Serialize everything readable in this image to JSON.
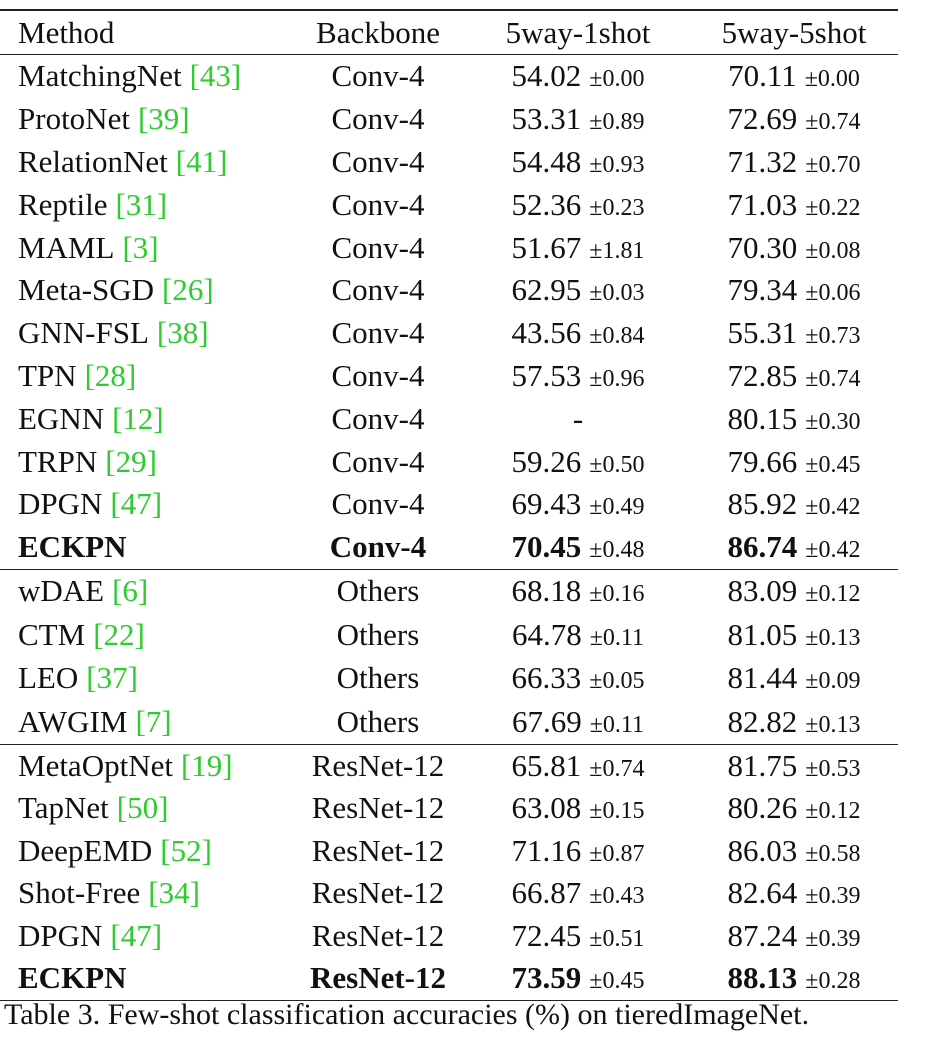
{
  "table": {
    "header": [
      "Method",
      "Backbone",
      "5way-1shot",
      "5way-5shot"
    ],
    "groups": [
      {
        "rows": [
          {
            "method": "MatchingNet",
            "ref": "[43]",
            "backbone": "Conv-4",
            "shot1": "54.02",
            "shot1_std": "±0.00",
            "shot5": "70.11",
            "shot5_std": "±0.00"
          },
          {
            "method": "ProtoNet",
            "ref": "[39]",
            "backbone": "Conv-4",
            "shot1": "53.31",
            "shot1_std": "±0.89",
            "shot5": "72.69",
            "shot5_std": "±0.74"
          },
          {
            "method": "RelationNet",
            "ref": "[41]",
            "backbone": "Conv-4",
            "shot1": "54.48",
            "shot1_std": "±0.93",
            "shot5": "71.32",
            "shot5_std": "±0.70"
          },
          {
            "method": "Reptile",
            "ref": "[31]",
            "backbone": "Conv-4",
            "shot1": "52.36",
            "shot1_std": "±0.23",
            "shot5": "71.03",
            "shot5_std": "±0.22"
          },
          {
            "method": "MAML",
            "ref": "[3]",
            "backbone": "Conv-4",
            "shot1": "51.67",
            "shot1_std": "±1.81",
            "shot5": "70.30",
            "shot5_std": "±0.08"
          },
          {
            "method": "Meta-SGD",
            "ref": "[26]",
            "backbone": "Conv-4",
            "shot1": "62.95",
            "shot1_std": "±0.03",
            "shot5": "79.34",
            "shot5_std": "±0.06"
          },
          {
            "method": "GNN-FSL",
            "ref": "[38]",
            "backbone": "Conv-4",
            "shot1": "43.56",
            "shot1_std": "±0.84",
            "shot5": "55.31",
            "shot5_std": "±0.73"
          },
          {
            "method": "TPN",
            "ref": "[28]",
            "backbone": "Conv-4",
            "shot1": "57.53",
            "shot1_std": "±0.96",
            "shot5": "72.85",
            "shot5_std": "±0.74"
          },
          {
            "method": "EGNN",
            "ref": "[12]",
            "backbone": "Conv-4",
            "shot1": "-",
            "shot5": "80.15",
            "shot5_std": "±0.30"
          },
          {
            "method": "TRPN",
            "ref": "[29]",
            "backbone": "Conv-4",
            "shot1": "59.26",
            "shot1_std": "±0.50",
            "shot5": "79.66",
            "shot5_std": "±0.45"
          },
          {
            "method": "DPGN",
            "ref": "[47]",
            "backbone": "Conv-4",
            "shot1": "69.43",
            "shot1_std": "±0.49",
            "shot5": "85.92",
            "shot5_std": "±0.42"
          },
          {
            "method": "ECKPN",
            "backbone": "Conv-4",
            "shot1": "70.45",
            "shot1_std": "±0.48",
            "shot5": "86.74",
            "shot5_std": "±0.42",
            "bold": true
          }
        ]
      },
      {
        "rows": [
          {
            "method": "wDAE",
            "ref": "[6]",
            "backbone": "Others",
            "shot1": "68.18",
            "shot1_std": "±0.16",
            "shot5": "83.09",
            "shot5_std": "±0.12"
          },
          {
            "method": "CTM",
            "ref": "[22]",
            "backbone": "Others",
            "shot1": "64.78",
            "shot1_std": "±0.11",
            "shot5": "81.05",
            "shot5_std": "±0.13"
          },
          {
            "method": "LEO",
            "ref": "[37]",
            "backbone": "Others",
            "shot1": "66.33",
            "shot1_std": "±0.05",
            "shot5": "81.44",
            "shot5_std": "±0.09"
          },
          {
            "method": "AWGIM",
            "ref": "[7]",
            "backbone": "Others",
            "shot1": "67.69",
            "shot1_std": "±0.11",
            "shot5": "82.82",
            "shot5_std": "±0.13"
          }
        ]
      },
      {
        "rows": [
          {
            "method": "MetaOptNet",
            "ref": "[19]",
            "backbone": "ResNet-12",
            "shot1": "65.81",
            "shot1_std": "±0.74",
            "shot5": "81.75",
            "shot5_std": "±0.53"
          },
          {
            "method": "TapNet",
            "ref": "[50]",
            "backbone": "ResNet-12",
            "shot1": "63.08",
            "shot1_std": "±0.15",
            "shot5": "80.26",
            "shot5_std": "±0.12"
          },
          {
            "method": "DeepEMD",
            "ref": "[52]",
            "backbone": "ResNet-12",
            "shot1": "71.16",
            "shot1_std": "±0.87",
            "shot5": "86.03",
            "shot5_std": "±0.58"
          },
          {
            "method": "Shot-Free",
            "ref": "[34]",
            "backbone": "ResNet-12",
            "shot1": "66.87",
            "shot1_std": "±0.43",
            "shot5": "82.64",
            "shot5_std": "±0.39"
          },
          {
            "method": "DPGN",
            "ref": "[47]",
            "backbone": "ResNet-12",
            "shot1": "72.45",
            "shot1_std": "±0.51",
            "shot5": "87.24",
            "shot5_std": "±0.39"
          },
          {
            "method": "ECKPN",
            "backbone": "ResNet-12",
            "shot1": "73.59",
            "shot1_std": "±0.45",
            "shot5": "88.13",
            "shot5_std": "±0.28",
            "bold": true
          }
        ]
      }
    ],
    "caption": "Table 3. Few-shot classification accuracies (%) on tieredImageNet."
  }
}
